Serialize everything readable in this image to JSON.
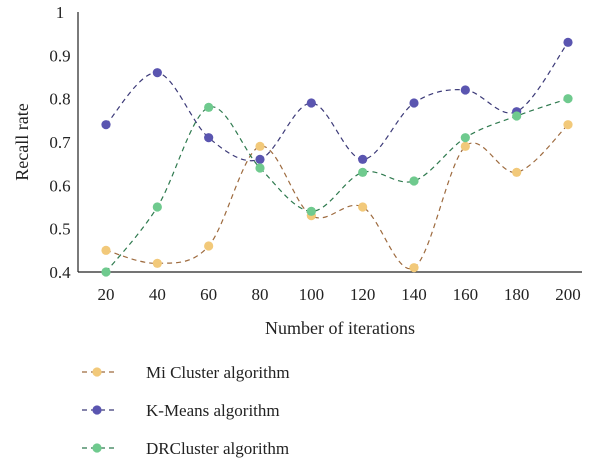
{
  "chart_data": {
    "type": "line",
    "title": "",
    "xlabel": "Number of iterations",
    "ylabel": "Recall rate",
    "x": [
      20,
      40,
      60,
      80,
      100,
      120,
      140,
      160,
      180,
      200
    ],
    "xticks": [
      "20",
      "40",
      "60",
      "80",
      "100",
      "120",
      "140",
      "160",
      "180",
      "200"
    ],
    "ylim": [
      0.4,
      1.0
    ],
    "yticks": [
      "0.4",
      "0.5",
      "0.6",
      "0.7",
      "0.8",
      "0.9",
      "1"
    ],
    "ytick_values": [
      0.4,
      0.5,
      0.6,
      0.7,
      0.8,
      0.9,
      1.0
    ],
    "grid": false,
    "legend_position": "bottom",
    "line_style": "dashed",
    "series": [
      {
        "name": "Mi Cluster algorithm",
        "marker_color": "#f2c97a",
        "line_color": "#9e6b3f",
        "values": [
          0.45,
          0.42,
          0.46,
          0.69,
          0.53,
          0.55,
          0.41,
          0.69,
          0.63,
          0.74
        ]
      },
      {
        "name": "K-Means algorithm",
        "marker_color": "#5a55b0",
        "line_color": "#3c3a78",
        "values": [
          0.74,
          0.86,
          0.71,
          0.66,
          0.79,
          0.66,
          0.79,
          0.82,
          0.77,
          0.93
        ]
      },
      {
        "name": "DRCluster algorithm",
        "marker_color": "#6fca8e",
        "line_color": "#2f7a4f",
        "values": [
          0.4,
          0.55,
          0.78,
          0.64,
          0.54,
          0.63,
          0.61,
          0.71,
          0.76,
          0.8
        ]
      }
    ]
  }
}
